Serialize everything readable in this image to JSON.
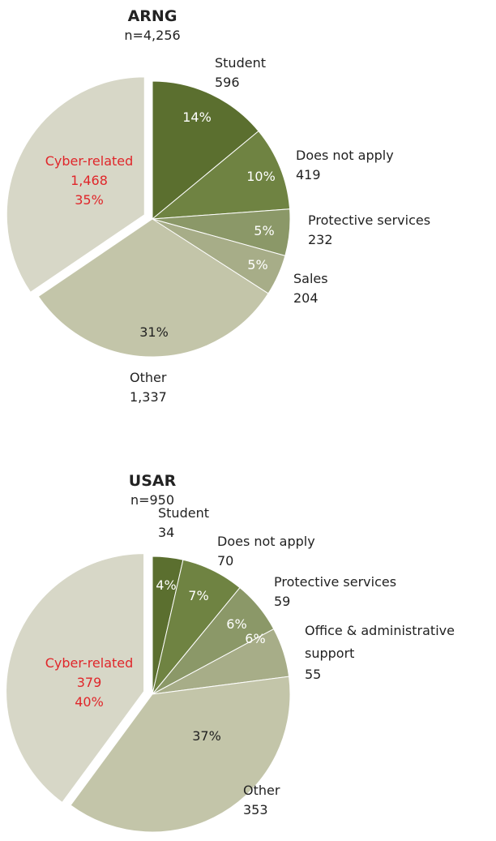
{
  "chart_data": [
    {
      "type": "pie",
      "title": "ARNG",
      "subtitle": "n=4,256",
      "categories": [
        "Student",
        "Does not apply",
        "Protective services",
        "Sales",
        "Other",
        "Cyber-related"
      ],
      "values": [
        596,
        419,
        232,
        204,
        1337,
        1468
      ],
      "value_labels": [
        "596",
        "419",
        "232",
        "204",
        "1,337",
        "1,468"
      ],
      "percent_labels": [
        "14%",
        "10%",
        "5%",
        "5%",
        "31%",
        "35%"
      ],
      "colors": [
        "#5b6f2f",
        "#6f8342",
        "#8b9868",
        "#a7ad88",
        "#c3c5a9",
        "#d7d7c7"
      ],
      "exploded": [
        false,
        false,
        false,
        false,
        false,
        true
      ],
      "highlight_color": "#e0262a"
    },
    {
      "type": "pie",
      "title": "USAR",
      "subtitle": "n=950",
      "categories": [
        "Student",
        "Does not apply",
        "Protective services",
        "Office & administrative support",
        "Other",
        "Cyber-related"
      ],
      "values": [
        34,
        70,
        59,
        55,
        353,
        379
      ],
      "value_labels": [
        "34",
        "70",
        "59",
        "55",
        "353",
        "379"
      ],
      "percent_labels": [
        "4%",
        "7%",
        "6%",
        "6%",
        "37%",
        "40%"
      ],
      "colors": [
        "#5b6f2f",
        "#6f8342",
        "#8b9868",
        "#a7ad88",
        "#c3c5a9",
        "#d7d7c7"
      ],
      "exploded": [
        false,
        false,
        false,
        false,
        false,
        true
      ],
      "highlight_color": "#e0262a"
    }
  ]
}
